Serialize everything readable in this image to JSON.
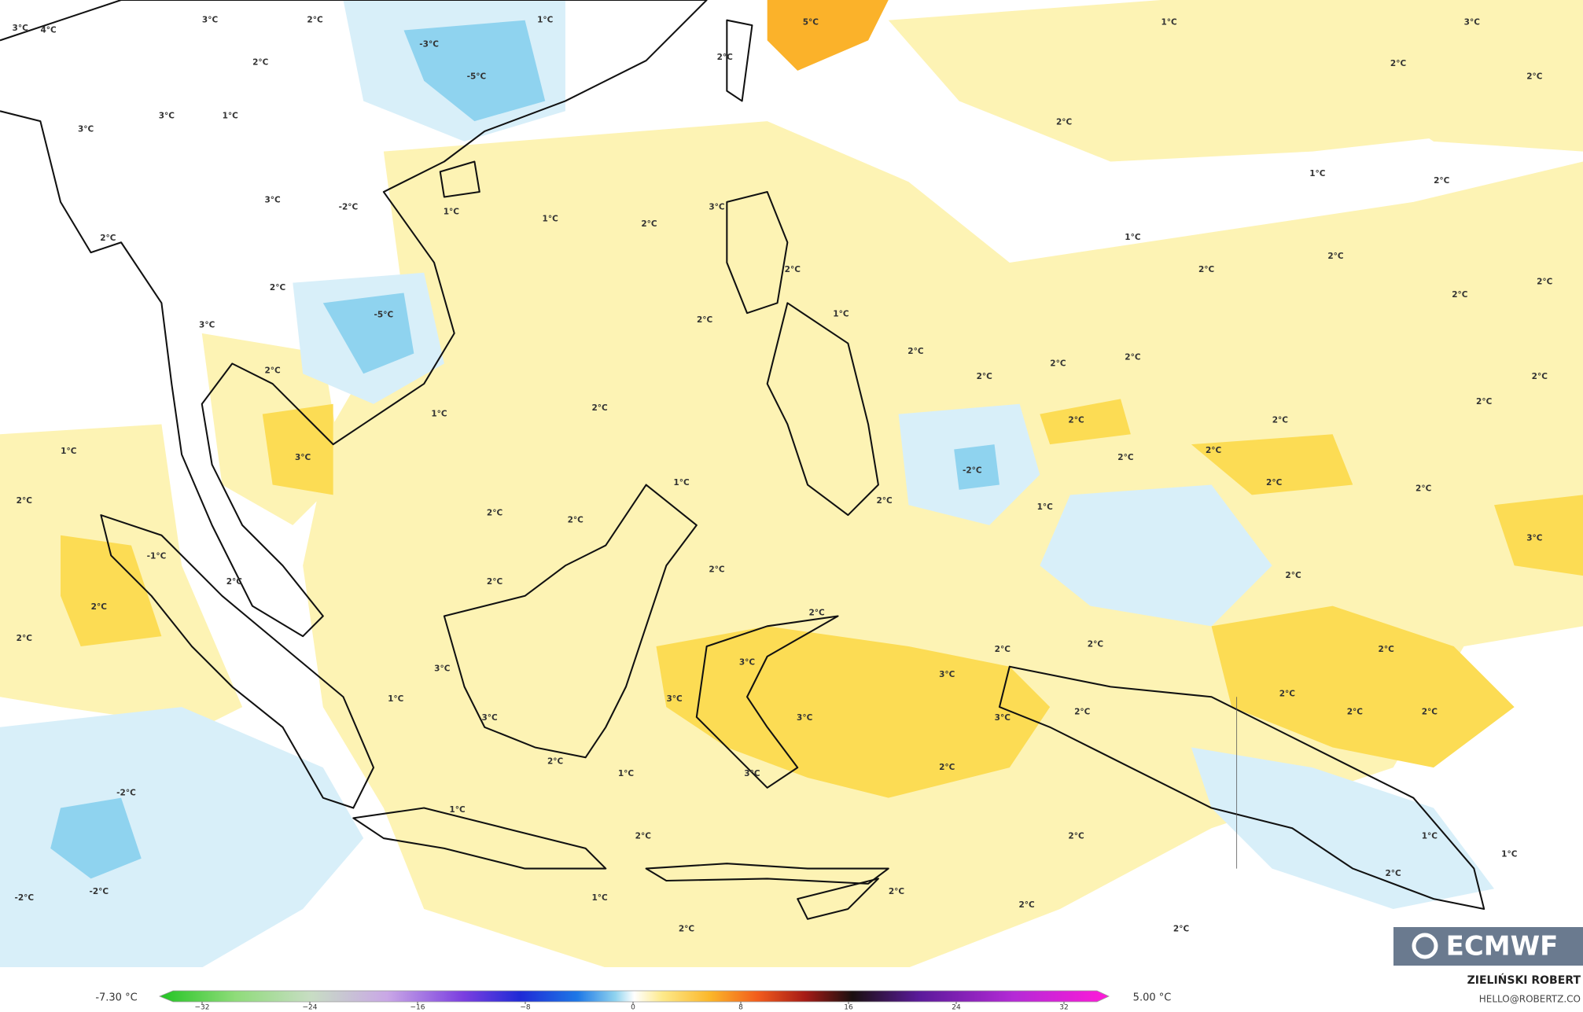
{
  "map": {
    "labels": [
      "3°C",
      "4°C",
      "3°C",
      "2°C",
      "1°C",
      "-3°C",
      "2°C",
      "-5°C",
      "3°C",
      "1°C",
      "3°C",
      "3°C",
      "-2°C",
      "2°C",
      "2°C",
      "-5°C",
      "3°C",
      "2°C",
      "5°C",
      "2°C",
      "1°C",
      "3°C",
      "2°C",
      "2°C",
      "2°C",
      "1°C",
      "2°C",
      "1°C",
      "1°C",
      "2°C",
      "3°C",
      "1°C",
      "2°C",
      "2°C",
      "2°C",
      "2°C",
      "2°C",
      "2°C",
      "1°C",
      "2°C",
      "2°C",
      "2°C",
      "2°C",
      "2°C",
      "2°C",
      "2°C",
      "1°C",
      "2°C",
      "2°C",
      "2°C",
      "2°C",
      "-2°C",
      "1°C",
      "3°C",
      "1°C",
      "2°C",
      "2°C",
      "2°C",
      "2°C",
      "1°C",
      "2°C",
      "2°C",
      "3°C",
      "-1°C",
      "2°C",
      "2°C",
      "2°C",
      "2°C",
      "2°C",
      "2°C",
      "2°C",
      "2°C",
      "2°C",
      "2°C",
      "3°C",
      "3°C",
      "3°C",
      "2°C",
      "3°C",
      "1°C",
      "2°C",
      "2°C",
      "3°C",
      "3°C",
      "3°C",
      "2°C",
      "2°C",
      "2°C",
      "1°C",
      "3°C",
      "-2°C",
      "1°C",
      "2°C",
      "2°C",
      "1°C",
      "1°C",
      "2°C",
      "-2°C",
      "-2°C",
      "1°C",
      "2°C",
      "2°C",
      "2°C",
      "2°C"
    ]
  },
  "colorbar": {
    "min_label": "-7.30 °C",
    "max_label": "5.00 °C",
    "ticks": [
      {
        "value": -32,
        "label": "−32"
      },
      {
        "value": -24,
        "label": "−24"
      },
      {
        "value": -16,
        "label": "−16"
      },
      {
        "value": -8,
        "label": "−8"
      },
      0,
      8,
      16,
      24,
      32
    ]
  },
  "credit": {
    "author": "ZIELIŃSKI ROBERT",
    "email": "HELLO@ROBERTZ.CO"
  },
  "logo": "ECMWF"
}
